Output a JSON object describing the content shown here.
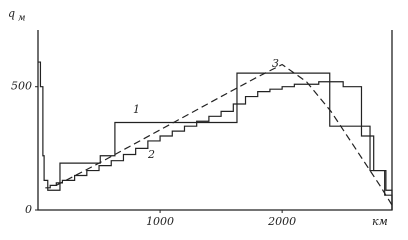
{
  "chart_data": {
    "type": "line",
    "ylabel": "q",
    "ylabel_sub": "м",
    "xlabel": "км",
    "xlim": [
      0,
      2900
    ],
    "ylim": [
      0,
      730
    ],
    "xticks": [
      1000,
      2000
    ],
    "yticks": [
      0,
      500
    ],
    "series": [
      {
        "name": "1",
        "color": "#222222",
        "step": true,
        "dashed": false,
        "x": [
          0,
          20,
          40,
          50,
          80,
          180,
          510,
          630,
          1630,
          2390,
          2720,
          2840,
          2900
        ],
        "values": [
          600,
          500,
          220,
          120,
          80,
          190,
          220,
          355,
          555,
          340,
          160,
          60,
          0
        ]
      },
      {
        "name": "2",
        "color": "#222222",
        "step": true,
        "dashed": false,
        "x": [
          60,
          100,
          150,
          200,
          300,
          400,
          500,
          600,
          700,
          800,
          900,
          1000,
          1100,
          1200,
          1300,
          1400,
          1500,
          1600,
          1700,
          1800,
          1900,
          2000,
          2100,
          2300,
          2500,
          2650,
          2750,
          2850,
          2900
        ],
        "values": [
          90,
          100,
          110,
          120,
          140,
          160,
          180,
          200,
          225,
          250,
          280,
          300,
          320,
          340,
          360,
          380,
          400,
          430,
          460,
          480,
          490,
          500,
          510,
          520,
          500,
          300,
          160,
          80,
          0
        ]
      },
      {
        "name": "3",
        "color": "#222222",
        "step": false,
        "dashed": true,
        "x": [
          150,
          500,
          1000,
          1500,
          1800,
          2000,
          2200,
          2400,
          2600,
          2800,
          2900
        ],
        "values": [
          100,
          190,
          325,
          460,
          540,
          590,
          520,
          400,
          250,
          100,
          20
        ]
      }
    ]
  }
}
